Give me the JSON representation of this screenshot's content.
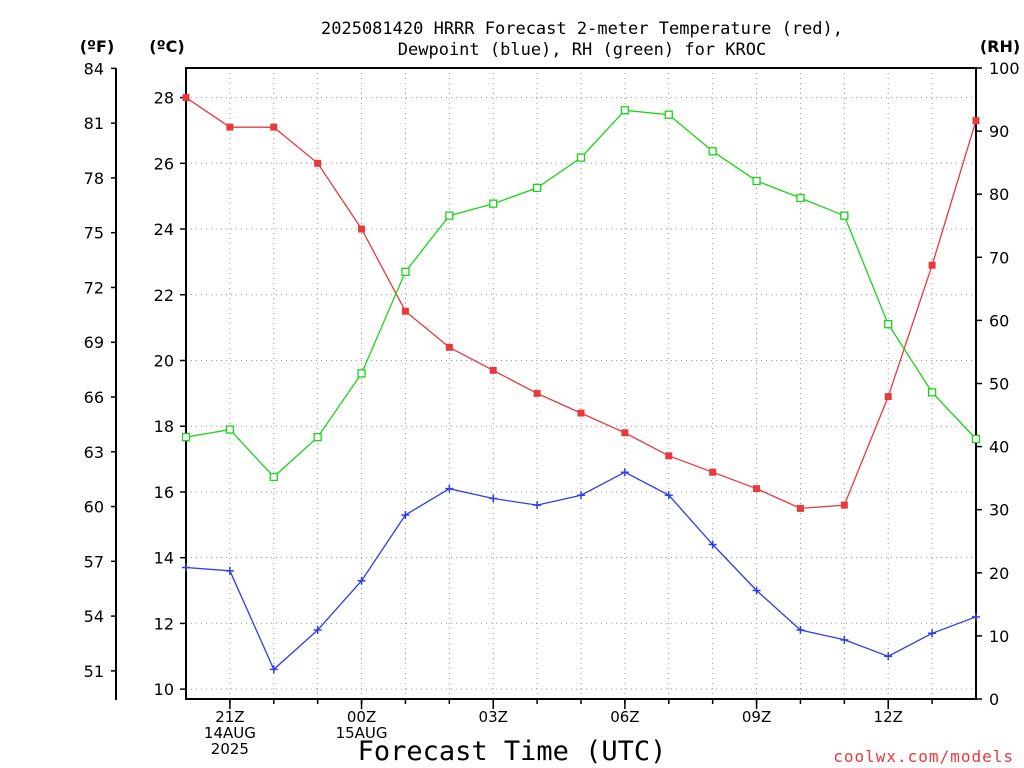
{
  "chart_data": {
    "type": "line",
    "title": "2025081420 HRRR Forecast 2-meter Temperature (red),",
    "subtitle": "Dewpoint (blue), RH (green) for KROC",
    "xlabel": "Forecast Time (UTC)",
    "watermark": "coolwx.com/models",
    "unit_labels": {
      "fahrenheit": "(ºF)",
      "celsius": "(ºC)",
      "rh": "(RH)"
    },
    "x": [
      0,
      1,
      2,
      3,
      4,
      5,
      6,
      7,
      8,
      9,
      10,
      11,
      12,
      13,
      14,
      15,
      16,
      17,
      18
    ],
    "x_ticks": [
      {
        "x": 1,
        "lines": [
          "21Z",
          "14AUG",
          "2025"
        ]
      },
      {
        "x": 4,
        "lines": [
          "00Z",
          "15AUG"
        ]
      },
      {
        "x": 7,
        "lines": [
          "03Z"
        ]
      },
      {
        "x": 10,
        "lines": [
          "06Z"
        ]
      },
      {
        "x": 13,
        "lines": [
          "09Z"
        ]
      },
      {
        "x": 16,
        "lines": [
          "12Z"
        ]
      }
    ],
    "xlim": [
      0,
      18
    ],
    "celsius_axis": {
      "ylim": [
        9.7,
        28.9
      ],
      "ticks": [
        10,
        12,
        14,
        16,
        18,
        20,
        22,
        24,
        26,
        28
      ]
    },
    "fahrenheit_axis": {
      "ticks": [
        51,
        54,
        57,
        60,
        63,
        66,
        69,
        72,
        75,
        78,
        81,
        84
      ]
    },
    "rh_axis": {
      "ylim": [
        0,
        100
      ],
      "ticks": [
        0,
        10,
        20,
        30,
        40,
        50,
        60,
        70,
        80,
        90,
        100
      ]
    },
    "grid": true,
    "series": [
      {
        "name": "Temperature",
        "axis": "celsius",
        "color": "#e8393c",
        "marker": "filled-square",
        "values": [
          28.0,
          27.1,
          27.1,
          26.0,
          24.0,
          21.5,
          20.4,
          19.7,
          19.0,
          18.4,
          17.8,
          17.1,
          16.6,
          16.1,
          15.5,
          15.6,
          18.9,
          22.9,
          27.3
        ]
      },
      {
        "name": "Dewpoint",
        "axis": "celsius",
        "color": "#2d3ee6",
        "marker": "plus",
        "values": [
          13.7,
          13.6,
          10.6,
          11.8,
          13.3,
          15.3,
          16.1,
          15.8,
          15.6,
          15.9,
          16.6,
          15.9,
          14.4,
          13.0,
          11.8,
          11.5,
          11.0,
          11.7,
          12.2
        ]
      },
      {
        "name": "RH",
        "axis": "rh",
        "color": "#19d419",
        "marker": "open-square",
        "values": [
          41.5,
          42.7,
          35.2,
          41.5,
          51.6,
          67.7,
          76.6,
          78.5,
          81.0,
          85.8,
          93.3,
          92.6,
          86.8,
          82.1,
          79.4,
          76.6,
          59.4,
          48.6,
          41.2
        ]
      }
    ]
  }
}
